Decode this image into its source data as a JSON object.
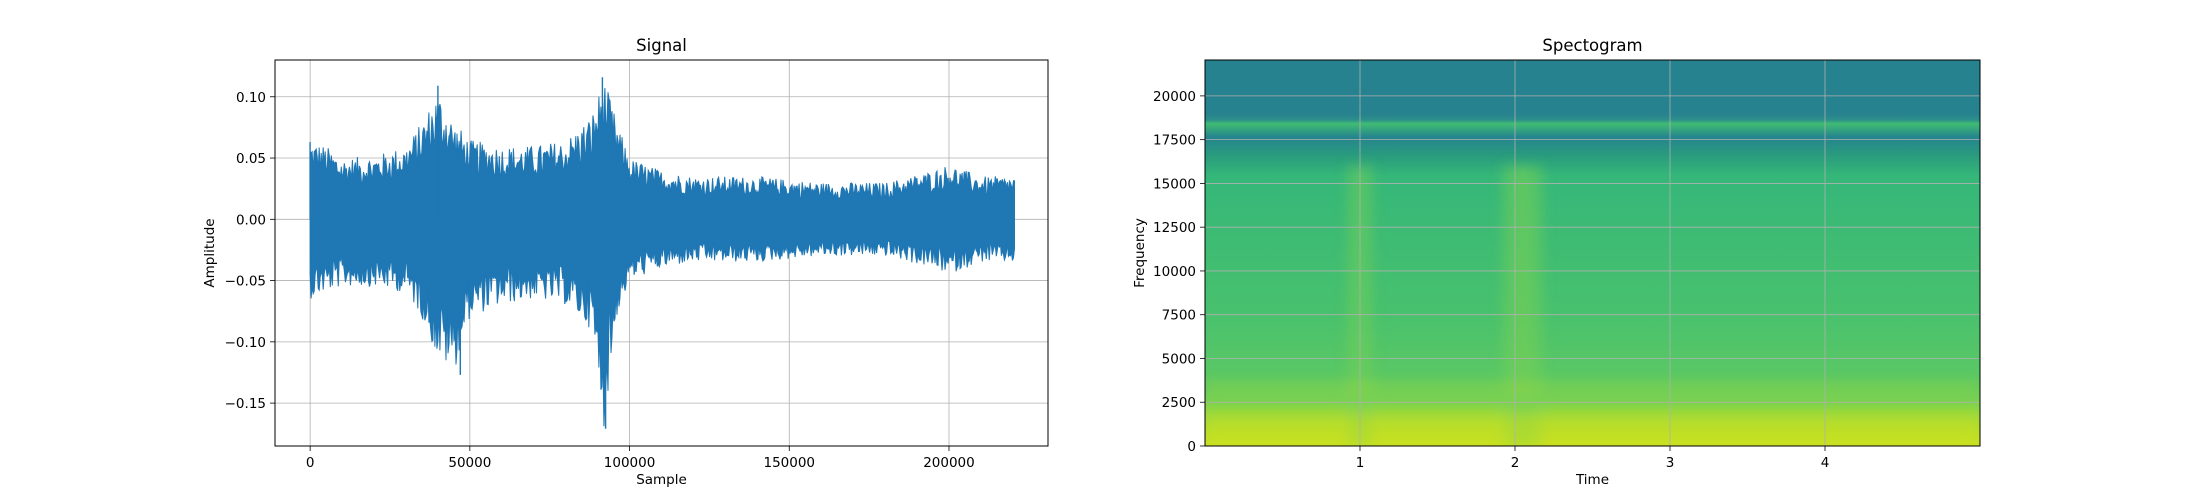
{
  "chart_data": [
    {
      "type": "line",
      "title": "Signal",
      "xlabel": "Sample",
      "ylabel": "Amplitude",
      "xlim": [
        -11000,
        231000
      ],
      "ylim": [
        -0.185,
        0.13
      ],
      "xticks": [
        0,
        50000,
        100000,
        150000,
        200000
      ],
      "xtick_labels": [
        "0",
        "50000",
        "100000",
        "150000",
        "200000"
      ],
      "yticks": [
        0.1,
        0.05,
        0.0,
        -0.05,
        -0.1,
        -0.15
      ],
      "ytick_labels": [
        "0.10",
        "0.05",
        "0.00",
        "−0.05",
        "−0.10",
        "−0.15"
      ],
      "grid": true,
      "line_color": "#1f77b4",
      "n_samples": 220500,
      "envelope": {
        "x": [
          0,
          5000,
          10000,
          20000,
          30000,
          35000,
          40000,
          45000,
          50000,
          60000,
          70000,
          80000,
          88000,
          92000,
          96000,
          100000,
          110000,
          120000,
          140000,
          160000,
          180000,
          195000,
          200000,
          205000,
          210000,
          220500
        ],
        "upper": [
          0.065,
          0.06,
          0.05,
          0.052,
          0.06,
          0.08,
          0.105,
          0.08,
          0.065,
          0.06,
          0.06,
          0.065,
          0.085,
          0.115,
          0.08,
          0.05,
          0.04,
          0.035,
          0.035,
          0.03,
          0.03,
          0.04,
          0.045,
          0.04,
          0.035,
          0.035
        ],
        "lower": [
          -0.065,
          -0.06,
          -0.055,
          -0.055,
          -0.06,
          -0.08,
          -0.115,
          -0.125,
          -0.08,
          -0.07,
          -0.065,
          -0.07,
          -0.09,
          -0.17,
          -0.08,
          -0.05,
          -0.04,
          -0.035,
          -0.035,
          -0.03,
          -0.03,
          -0.04,
          -0.045,
          -0.04,
          -0.035,
          -0.035
        ]
      },
      "series": [
        {
          "x": [
            0,
            40000,
            47000,
            91500,
            92500
          ],
          "y": [
            0.063,
            0.109,
            -0.127,
            0.116,
            -0.171
          ]
        }
      ]
    },
    {
      "type": "heatmap",
      "title": "Spectogram",
      "xlabel": "Time",
      "ylabel": "Frequency",
      "xlim": [
        0,
        5.0
      ],
      "ylim": [
        0,
        22050
      ],
      "xticks": [
        1,
        2,
        3,
        4
      ],
      "xtick_labels": [
        "1",
        "2",
        "3",
        "4"
      ],
      "yticks": [
        0,
        2500,
        5000,
        7500,
        10000,
        12500,
        15000,
        17500,
        20000
      ],
      "ytick_labels": [
        "0",
        "2500",
        "5000",
        "7500",
        "10000",
        "12500",
        "15000",
        "17500",
        "20000"
      ],
      "grid": true,
      "colormap": "viridis",
      "levels": {
        "0-1000": 0.85,
        "1000-3000": 0.7,
        "3000-16000": 0.55,
        "16000-18500": 0.45,
        "18500-22050": 0.28
      },
      "bright_times": [
        1.0,
        2.0,
        2.1
      ]
    }
  ]
}
